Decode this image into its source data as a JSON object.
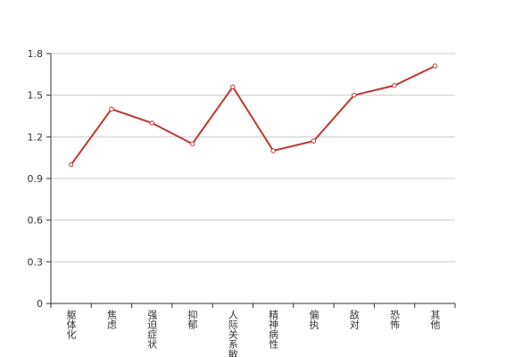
{
  "chart_data": {
    "type": "line",
    "categories": [
      "躯体化",
      "焦虑",
      "强迫症状",
      "抑郁",
      "人际关系敏感",
      "精神病性",
      "偏执",
      "敌对",
      "恐怖",
      "其他"
    ],
    "series": [
      {
        "color": "#c23531",
        "values": [
          1.0,
          1.4,
          1.3,
          1.15,
          1.56,
          1.1,
          1.17,
          1.5,
          1.57,
          1.71
        ]
      }
    ],
    "ylim": [
      0,
      1.8
    ],
    "yticks": [
      0,
      0.3,
      0.6,
      0.9,
      1.2,
      1.5,
      1.8
    ],
    "grid": true
  }
}
